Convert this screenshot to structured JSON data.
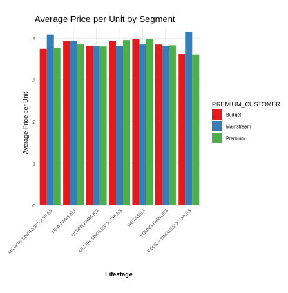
{
  "chart_data": {
    "type": "bar",
    "title": "Average Price per Unit by Segment",
    "xlabel": "Lifestage",
    "ylabel": "Average Price per Unit",
    "ylim": [
      0,
      4.25
    ],
    "y_ticks": [
      0,
      1,
      2,
      3,
      4
    ],
    "grid": true,
    "legend_position": "right",
    "legend_title": "PREMIUM_CUSTOMER",
    "categories": [
      "MIDAGE SINGLES/COUPLES",
      "NEW FAMILIES",
      "OLDER FAMILIES",
      "OLDER SINGLES/COUPLES",
      "RETIREES",
      "YOUNG FAMILIES",
      "YOUNG SINGLES/COUPLES"
    ],
    "series": [
      {
        "name": "Budget",
        "color": "#E41A1C",
        "values": [
          3.74,
          3.92,
          3.82,
          3.92,
          3.97,
          3.85,
          3.62
        ]
      },
      {
        "name": "Mainstream",
        "color": "#377EB8",
        "values": [
          4.09,
          3.92,
          3.82,
          3.82,
          3.85,
          3.81,
          4.15
        ]
      },
      {
        "name": "Premium",
        "color": "#4DAF4A",
        "values": [
          3.77,
          3.87,
          3.8,
          3.95,
          3.97,
          3.83,
          3.61
        ]
      }
    ]
  }
}
